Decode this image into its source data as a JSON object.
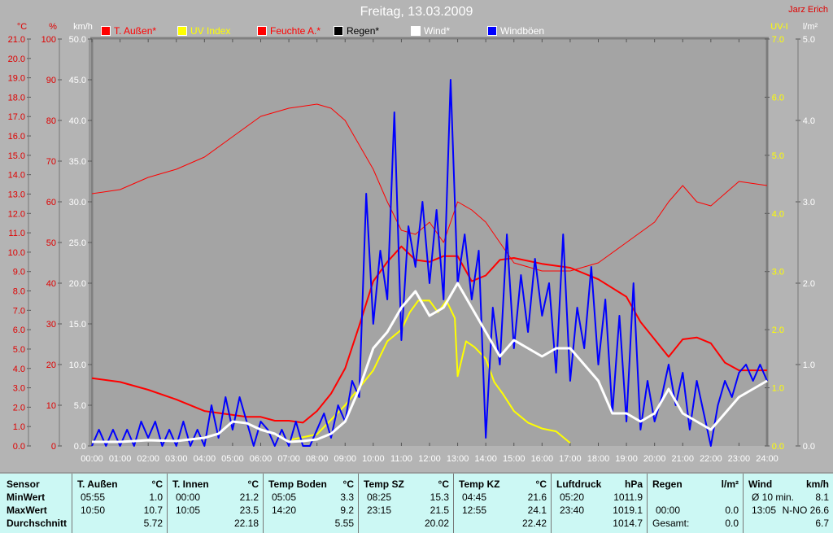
{
  "header": {
    "title": "Freitag, 13.03.2009",
    "author": "Jarz Erich"
  },
  "chart_data": {
    "type": "line",
    "title": "Freitag, 13.03.2009",
    "x_ticks": [
      "00:00",
      "01:00",
      "02:00",
      "03:00",
      "04:00",
      "05:00",
      "06:00",
      "07:00",
      "08:00",
      "09:00",
      "10:00",
      "11:00",
      "12:00",
      "13:00",
      "14:00",
      "15:00",
      "16:00",
      "17:00",
      "18:00",
      "19:00",
      "20:00",
      "21:00",
      "22:00",
      "23:00",
      "24:00"
    ],
    "axes": {
      "celsius": {
        "unit": "°C",
        "range": [
          0,
          21
        ],
        "ticks": [
          "0.0",
          "1.0",
          "2.0",
          "3.0",
          "4.0",
          "5.0",
          "6.0",
          "7.0",
          "8.0",
          "9.0",
          "10.0",
          "11.0",
          "12.0",
          "13.0",
          "14.0",
          "15.0",
          "16.0",
          "17.0",
          "18.0",
          "19.0",
          "20.0",
          "21.0"
        ]
      },
      "percent": {
        "unit": "%",
        "range": [
          0,
          100
        ],
        "ticks": [
          "0",
          "10",
          "20",
          "30",
          "40",
          "50",
          "60",
          "70",
          "80",
          "90",
          "100"
        ]
      },
      "kmh": {
        "unit": "km/h",
        "range": [
          0,
          50
        ],
        "ticks": [
          "0.0",
          "5.0",
          "10.0",
          "15.0",
          "20.0",
          "25.0",
          "30.0",
          "35.0",
          "40.0",
          "45.0",
          "50.0"
        ]
      },
      "uv": {
        "unit": "UV-I",
        "range": [
          0,
          7
        ],
        "ticks": [
          "0.0",
          "1.0",
          "2.0",
          "3.0",
          "4.0",
          "5.0",
          "6.0",
          "7.0"
        ]
      },
      "rain": {
        "unit": "l/m²",
        "range": [
          0,
          5
        ],
        "ticks": [
          "0.0",
          "1.0",
          "2.0",
          "3.0",
          "4.0",
          "5.0"
        ]
      }
    },
    "legend": [
      {
        "name": "T. Außen*",
        "color": "#ff0000"
      },
      {
        "name": "UV Index",
        "color": "#ffff00"
      },
      {
        "name": "Feuchte A.*",
        "color": "#ff0000"
      },
      {
        "name": "Regen*",
        "color": "#000000"
      },
      {
        "name": "Wind*",
        "color": "#ffffff"
      },
      {
        "name": "Windböen",
        "color": "#0000ff"
      }
    ],
    "series": [
      {
        "name": "Feuchte A.",
        "axis": "percent",
        "color": "#ff0000",
        "width": 1,
        "x": [
          0,
          1,
          2,
          3,
          4,
          5,
          6,
          7,
          8,
          8.5,
          9,
          10,
          10.5,
          11,
          11.5,
          12,
          12.5,
          13,
          13.5,
          14,
          15,
          16,
          17,
          18,
          19,
          20,
          20.5,
          21,
          21.5,
          22,
          22.5,
          23,
          24
        ],
        "y": [
          62,
          63,
          66,
          68,
          71,
          76,
          81,
          83,
          84,
          83,
          80,
          68,
          60,
          53,
          52,
          55,
          50,
          60,
          58,
          55,
          45,
          43,
          43,
          45,
          50,
          55,
          60,
          64,
          60,
          59,
          62,
          65,
          64
        ]
      },
      {
        "name": "T. Außen",
        "axis": "celsius",
        "color": "#ff0000",
        "width": 2,
        "x": [
          0,
          1,
          2,
          3,
          4,
          5,
          5.5,
          6,
          6.5,
          7,
          7.5,
          8,
          8.5,
          9,
          9.5,
          10,
          10.5,
          11,
          11.5,
          12,
          12.5,
          13,
          13.5,
          14,
          14.5,
          15,
          16,
          17,
          18,
          19,
          19.5,
          20,
          20.5,
          21,
          21.5,
          22,
          22.5,
          23,
          24
        ],
        "y": [
          3.5,
          3.3,
          2.9,
          2.4,
          1.8,
          1.6,
          1.5,
          1.5,
          1.3,
          1.3,
          1.2,
          1.8,
          2.7,
          4.0,
          6.2,
          8.5,
          9.5,
          10.3,
          9.6,
          9.5,
          9.8,
          9.8,
          8.5,
          8.8,
          9.6,
          9.7,
          9.4,
          9.2,
          8.6,
          7.7,
          6.4,
          5.5,
          4.6,
          5.5,
          5.6,
          5.3,
          4.3,
          3.9,
          3.9
        ]
      },
      {
        "name": "UV Index",
        "axis": "uv",
        "color": "#ffff00",
        "width": 2,
        "x": [
          7,
          8,
          9,
          9.5,
          10,
          10.5,
          11,
          11.3,
          11.6,
          12,
          12.3,
          12.6,
          12.9,
          13,
          13.3,
          13.6,
          14,
          14.3,
          14.6,
          15,
          15.5,
          16,
          16.5,
          17
        ],
        "y": [
          0.1,
          0.2,
          0.7,
          1.0,
          1.3,
          1.8,
          2.0,
          2.3,
          2.5,
          2.5,
          2.3,
          2.5,
          2.2,
          1.2,
          1.8,
          1.7,
          1.5,
          1.1,
          0.9,
          0.6,
          0.4,
          0.3,
          0.25,
          0.05
        ]
      },
      {
        "name": "Wind",
        "axis": "kmh",
        "color": "#ffffff",
        "width": 3,
        "x": [
          0,
          1,
          2,
          3,
          4,
          4.5,
          5,
          5.5,
          6,
          6.5,
          7,
          7.5,
          8,
          8.5,
          9,
          9.5,
          10,
          10.5,
          11,
          11.5,
          12,
          12.5,
          13,
          13.5,
          14,
          14.5,
          15,
          15.5,
          16,
          16.5,
          17,
          17.5,
          18,
          18.5,
          19,
          19.5,
          20,
          20.5,
          21,
          21.5,
          22,
          22.5,
          23,
          23.5,
          24
        ],
        "y": [
          0.5,
          0.5,
          0.7,
          0.6,
          1,
          1.5,
          3,
          2.8,
          2,
          1.5,
          0.5,
          0.6,
          0.8,
          1.5,
          3,
          7,
          12,
          14,
          17,
          19,
          16,
          17,
          20,
          17,
          14,
          11,
          13,
          12,
          11,
          12,
          12,
          10,
          8,
          4,
          4,
          3,
          4,
          7,
          4,
          3,
          2,
          4,
          6,
          7,
          8
        ]
      },
      {
        "name": "Windböen",
        "axis": "kmh",
        "color": "#0000ff",
        "width": 2,
        "x": [
          0,
          0.25,
          0.5,
          0.75,
          1,
          1.25,
          1.5,
          1.75,
          2,
          2.25,
          2.5,
          2.75,
          3,
          3.25,
          3.5,
          3.75,
          4,
          4.25,
          4.5,
          4.75,
          5,
          5.25,
          5.5,
          5.75,
          6,
          6.25,
          6.5,
          6.75,
          7,
          7.25,
          7.5,
          7.75,
          8,
          8.25,
          8.5,
          8.75,
          9,
          9.25,
          9.5,
          9.75,
          10,
          10.25,
          10.5,
          10.75,
          11,
          11.25,
          11.5,
          11.75,
          12,
          12.25,
          12.5,
          12.75,
          13,
          13.25,
          13.5,
          13.75,
          14,
          14.25,
          14.5,
          14.75,
          15,
          15.25,
          15.5,
          15.75,
          16,
          16.25,
          16.5,
          16.75,
          17,
          17.25,
          17.5,
          17.75,
          18,
          18.25,
          18.5,
          18.75,
          19,
          19.25,
          19.5,
          19.75,
          20,
          20.25,
          20.5,
          20.75,
          21,
          21.25,
          21.5,
          21.75,
          22,
          22.25,
          22.5,
          22.75,
          23,
          23.25,
          23.5,
          23.75,
          24
        ],
        "y": [
          0,
          2,
          0,
          2,
          0,
          2,
          0,
          3,
          1,
          3,
          0,
          2,
          0,
          3,
          0,
          2,
          0,
          5,
          1,
          6,
          2,
          6,
          3,
          0,
          3,
          2,
          0,
          2,
          0,
          3,
          0,
          0,
          2,
          4,
          1,
          5,
          3,
          8,
          6,
          31,
          15,
          24,
          18,
          41,
          13,
          27,
          22,
          30,
          20,
          29,
          18,
          45,
          20,
          26,
          18,
          24,
          1,
          17,
          10,
          26,
          12,
          21,
          14,
          23,
          16,
          20,
          9,
          26,
          8,
          17,
          12,
          22,
          10,
          18,
          4,
          16,
          3,
          20,
          2,
          8,
          3,
          6,
          10,
          5,
          9,
          2,
          8,
          4,
          0,
          5,
          8,
          6,
          9,
          10,
          8,
          10,
          8
        ]
      }
    ]
  },
  "stats": {
    "sensor": {
      "header": "Sensor",
      "rows": [
        "MinWert",
        "MaxWert",
        "Durchschnitt"
      ]
    },
    "columns": [
      {
        "name": "T. Außen",
        "unit": "°C",
        "min_time": "05:55",
        "min": "1.0",
        "max_time": "10:50",
        "max": "10.7",
        "avg": "5.72"
      },
      {
        "name": "T. Innen",
        "unit": "°C",
        "min_time": "00:00",
        "min": "21.2",
        "max_time": "10:05",
        "max": "23.5",
        "avg": "22.18"
      },
      {
        "name": "Temp Boden",
        "unit": "°C",
        "min_time": "05:05",
        "min": "3.3",
        "max_time": "14:20",
        "max": "9.2",
        "avg": "5.55"
      },
      {
        "name": "Temp SZ",
        "unit": "°C",
        "min_time": "08:25",
        "min": "15.3",
        "max_time": "23:15",
        "max": "21.5",
        "avg": "20.02"
      },
      {
        "name": "Temp KZ",
        "unit": "°C",
        "min_time": "04:45",
        "min": "21.6",
        "max_time": "12:55",
        "max": "24.1",
        "avg": "22.42"
      },
      {
        "name": "Luftdruck",
        "unit": "hPa",
        "min_time": "05:20",
        "min": "1011.9",
        "max_time": "23:40",
        "max": "1019.1",
        "avg": "1014.7"
      },
      {
        "name": "Regen",
        "unit": "l/m²",
        "min_time": "",
        "min": "",
        "max_time": "00:00",
        "max": "0.0",
        "avg_label": "Gesamt:",
        "avg": "0.0"
      },
      {
        "name": "Wind",
        "unit": "km/h",
        "min_time": "Ø 10 min.",
        "min": "8.1",
        "max_time": "13:05",
        "max": "N-NO 26.6",
        "avg": "6.7"
      }
    ]
  }
}
